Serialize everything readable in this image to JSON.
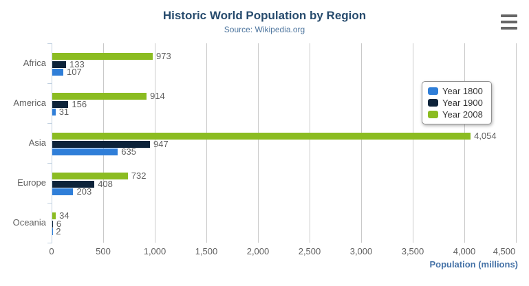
{
  "chart_data": {
    "type": "bar",
    "title": "Historic World Population by Region",
    "subtitle": "Source: Wikipedia.org",
    "categories": [
      "Africa",
      "America",
      "Asia",
      "Europe",
      "Oceania"
    ],
    "series": [
      {
        "name": "Year 1800",
        "color": "#2f7ed8",
        "values": [
          107,
          31,
          635,
          203,
          2
        ]
      },
      {
        "name": "Year 1900",
        "color": "#0d233a",
        "values": [
          133,
          156,
          947,
          408,
          6
        ]
      },
      {
        "name": "Year 2008",
        "color": "#8bbc21",
        "values": [
          973,
          914,
          4054,
          732,
          34
        ]
      }
    ],
    "series_display_order_top_to_bottom": [
      "Year 2008",
      "Year 1900",
      "Year 1800"
    ],
    "xlabel": "Population (millions)",
    "xlim": [
      0,
      4500
    ],
    "x_tick_interval": 500,
    "x_tick_labels": [
      "0",
      "500",
      "1,000",
      "1,500",
      "2,000",
      "2,500",
      "3,000",
      "3,500",
      "4,000",
      "4,500"
    ],
    "grid": true,
    "data_labels": true,
    "legend_position": "right-middle",
    "legend_items": [
      "Year 1800",
      "Year 1900",
      "Year 2008"
    ]
  },
  "icons": {
    "menu": "hamburger-menu"
  },
  "colors": {
    "title": "#274b6d",
    "subtitle": "#4d759e",
    "axis_label": "#606060",
    "data_label": "#606060",
    "axis_title": "#4572a7",
    "grid_line": "#c9c9c9",
    "axis_line": "#c0d0e0",
    "legend_text": "#333333",
    "legend_border": "#909090",
    "menu_icon": "#666666",
    "background": "#ffffff"
  }
}
